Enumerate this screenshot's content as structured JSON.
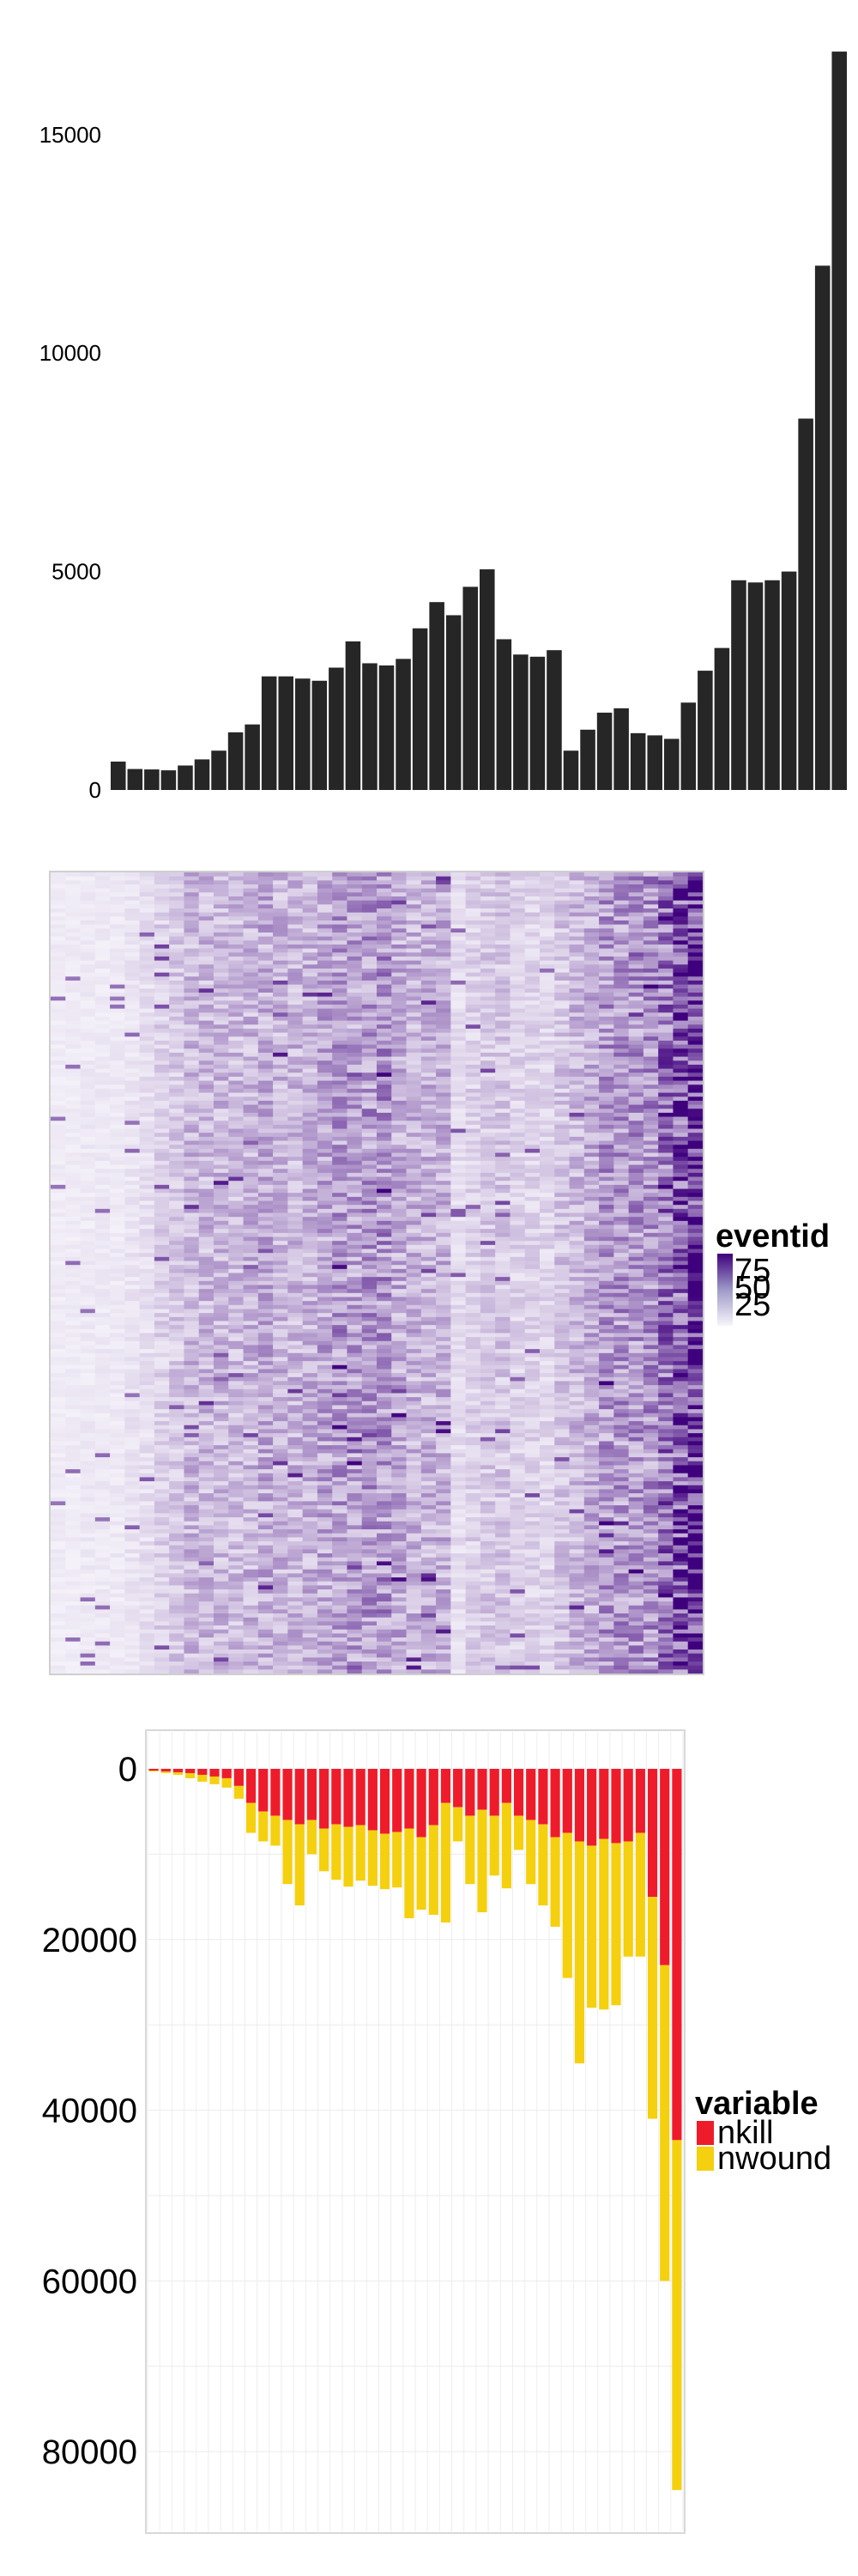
{
  "chart_data": [
    {
      "type": "bar",
      "title": "",
      "xlabel": "",
      "ylabel": "",
      "ylim": [
        0,
        17000
      ],
      "yticks": [
        0,
        5000,
        10000,
        15000
      ],
      "bar_color": "#262626",
      "grid": false,
      "values": [
        650,
        480,
        470,
        450,
        560,
        700,
        900,
        1320,
        1500,
        2600,
        2600,
        2550,
        2500,
        2800,
        3400,
        2900,
        2850,
        3000,
        3700,
        4300,
        4000,
        4650,
        5050,
        3450,
        3100,
        3050,
        3200,
        900,
        1380,
        1770,
        1870,
        1300,
        1250,
        1170,
        2000,
        2730,
        3250,
        4800,
        4750,
        4800,
        5000,
        8500,
        12000,
        16900
      ]
    },
    {
      "type": "heatmap",
      "title": "",
      "xlabel": "",
      "ylabel": "",
      "n_columns": 44,
      "n_rows": 200,
      "color_low": "#f7f5fb",
      "color_high": "#3f007d",
      "column_intensity": [
        0.04,
        0.04,
        0.05,
        0.05,
        0.05,
        0.07,
        0.09,
        0.15,
        0.18,
        0.25,
        0.25,
        0.25,
        0.24,
        0.26,
        0.3,
        0.26,
        0.26,
        0.27,
        0.32,
        0.36,
        0.34,
        0.38,
        0.4,
        0.3,
        0.27,
        0.27,
        0.28,
        0.1,
        0.15,
        0.18,
        0.19,
        0.14,
        0.14,
        0.13,
        0.2,
        0.25,
        0.29,
        0.38,
        0.38,
        0.38,
        0.4,
        0.55,
        0.7,
        0.82
      ],
      "legend": {
        "title": "eventid",
        "labels": [
          "75",
          "50",
          "25"
        ],
        "position": "right"
      }
    },
    {
      "type": "bar",
      "stacked": true,
      "direction": "downward",
      "title": "",
      "xlabel": "",
      "ylabel": "",
      "ylim": [
        0,
        88000
      ],
      "yticks": [
        0,
        20000,
        40000,
        60000,
        80000
      ],
      "grid": true,
      "series": [
        {
          "name": "nkill",
          "color": "#ee1c2b",
          "values": [
            200,
            300,
            400,
            500,
            700,
            900,
            1100,
            2000,
            4000,
            5000,
            5500,
            6000,
            6500,
            6000,
            7000,
            6500,
            6800,
            6600,
            7200,
            7600,
            7400,
            7000,
            8000,
            6600,
            4000,
            4500,
            5500,
            4800,
            5500,
            4000,
            5500,
            6000,
            6500,
            8000,
            7500,
            8500,
            9000,
            8200,
            8700,
            8500,
            7500,
            15000,
            23000,
            43500
          ]
        },
        {
          "name": "nwound",
          "color": "#f4d00f",
          "values": [
            100,
            200,
            300,
            600,
            800,
            900,
            1100,
            1500,
            3500,
            3500,
            3500,
            7500,
            9500,
            4000,
            5000,
            6500,
            7000,
            6500,
            6500,
            6500,
            6500,
            10500,
            8500,
            10500,
            14000,
            4000,
            8000,
            12000,
            7000,
            10000,
            4000,
            7500,
            9500,
            10500,
            17000,
            26000,
            19000,
            20000,
            19000,
            13500,
            14500,
            26000,
            37000,
            41000
          ]
        }
      ],
      "legend": {
        "title": "variable",
        "labels": [
          "nkill",
          "nwound"
        ],
        "position": "right"
      }
    }
  ]
}
